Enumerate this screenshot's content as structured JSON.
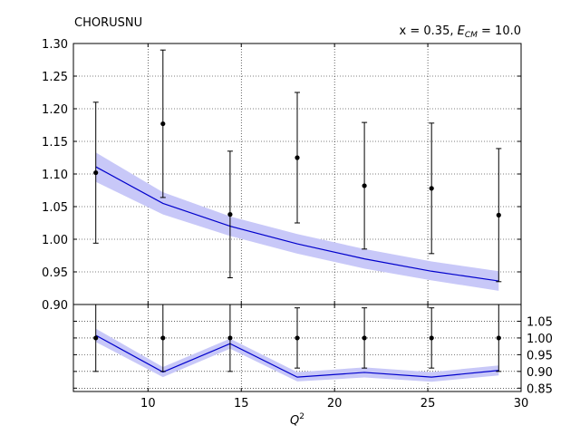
{
  "chart_data": [
    {
      "panel": "top",
      "type": "line",
      "title": "CHORUSNU",
      "annotation": {
        "prefix": "x = 0.35, ",
        "symbol": "E",
        "subscript": "CM",
        "suffix": " = 10.0"
      },
      "xlim": [
        6,
        30
      ],
      "ylim": [
        0.9,
        1.3
      ],
      "yticks": [
        "0.90",
        "0.95",
        "1.00",
        "1.05",
        "1.10",
        "1.15",
        "1.20",
        "1.25",
        "1.30"
      ],
      "ytick_values": [
        0.9,
        0.95,
        1.0,
        1.05,
        1.1,
        1.15,
        1.2,
        1.25,
        1.3
      ],
      "grid": true,
      "series": [
        {
          "kind": "data_points",
          "x": [
            7.2,
            10.8,
            14.4,
            18.0,
            21.6,
            25.2,
            28.8
          ],
          "y": [
            1.102,
            1.177,
            1.038,
            1.125,
            1.082,
            1.078,
            1.037
          ],
          "yerr": [
            0.108,
            0.113,
            0.097,
            0.1,
            0.097,
            0.1,
            0.102
          ],
          "color": "#000000"
        },
        {
          "kind": "theory_band",
          "x": [
            7.2,
            10.8,
            14.4,
            18.0,
            21.6,
            25.2,
            28.8
          ],
          "y": [
            1.111,
            1.055,
            1.02,
            0.993,
            0.97,
            0.951,
            0.936
          ],
          "band_low": [
            1.088,
            1.038,
            1.005,
            0.978,
            0.955,
            0.937,
            0.921
          ],
          "band_high": [
            1.133,
            1.072,
            1.035,
            1.008,
            0.985,
            0.966,
            0.951
          ],
          "line_color": "#0000cc",
          "band_color": "#c8c8f8"
        }
      ]
    },
    {
      "panel": "bottom",
      "type": "line",
      "xlabel": "Q",
      "xlabel_sup": "2",
      "xlim": [
        6,
        30
      ],
      "xticks": [
        "10",
        "15",
        "20",
        "25",
        "30"
      ],
      "xtick_values": [
        10,
        15,
        20,
        25,
        30
      ],
      "ylim": [
        0.84,
        1.1
      ],
      "yticks": [
        "0.85",
        "0.90",
        "0.95",
        "1.00",
        "1.05"
      ],
      "ytick_values": [
        0.85,
        0.9,
        0.95,
        1.0,
        1.05
      ],
      "grid": true,
      "series": [
        {
          "kind": "data_points",
          "x": [
            7.2,
            10.8,
            14.4,
            18.0,
            21.6,
            25.2,
            28.8
          ],
          "y": [
            1.0,
            1.0,
            1.0,
            1.0,
            1.0,
            1.0,
            1.0
          ],
          "yerr": [
            0.1,
            0.1,
            0.1,
            0.09,
            0.09,
            0.09,
            0.1
          ],
          "color": "#000000"
        },
        {
          "kind": "theory_band",
          "x": [
            7.2,
            10.8,
            14.4,
            18.0,
            21.6,
            25.2,
            28.8
          ],
          "y": [
            1.008,
            0.898,
            0.983,
            0.883,
            0.897,
            0.883,
            0.903
          ],
          "band_low": [
            0.988,
            0.883,
            0.968,
            0.87,
            0.882,
            0.869,
            0.888
          ],
          "band_high": [
            1.028,
            0.913,
            0.998,
            0.898,
            0.912,
            0.898,
            0.918
          ],
          "line_color": "#0000cc",
          "band_color": "#c8c8f8"
        }
      ]
    }
  ]
}
